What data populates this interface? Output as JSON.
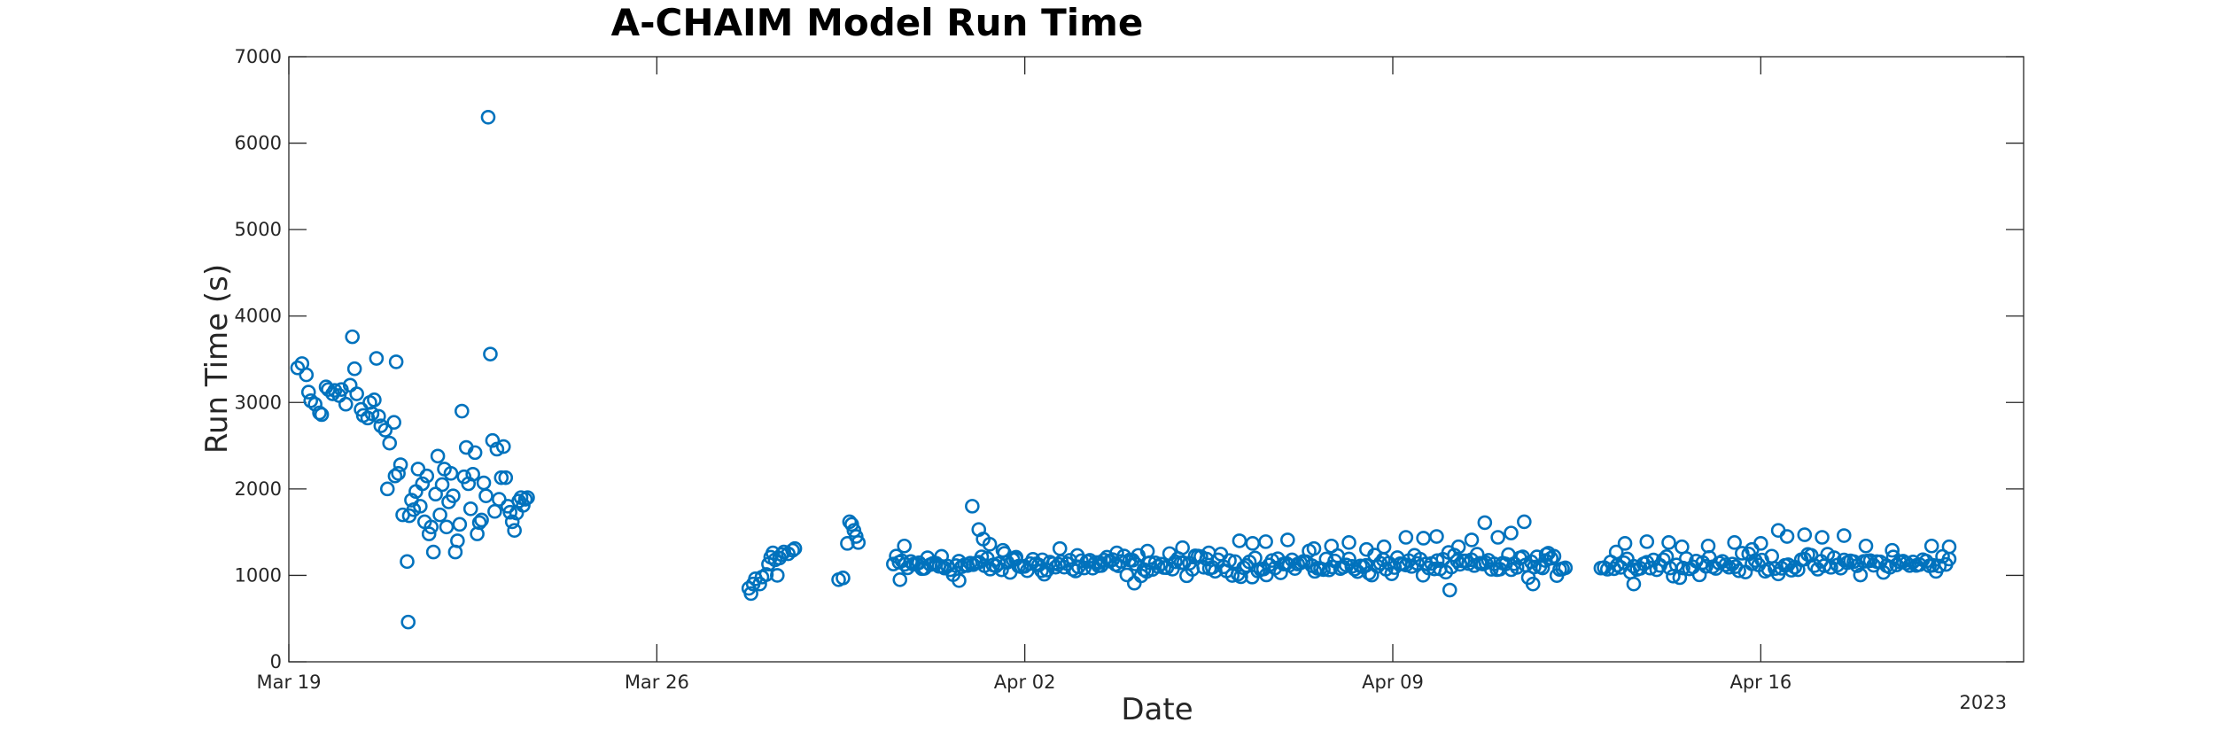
{
  "chart_data": {
    "type": "scatter",
    "title": "A-CHAIM Model Run Time",
    "xlabel": "Date",
    "ylabel": "Run Time (s)",
    "x_ticks": [
      "Mar 19",
      "Mar 26",
      "Apr 02",
      "Apr 09",
      "Apr 16"
    ],
    "x_year_label": "2023",
    "y_ticks": [
      "0",
      "1000",
      "2000",
      "3000",
      "4000",
      "5000",
      "6000",
      "7000"
    ],
    "xlim": [
      "2023-03-19",
      "2023-04-21"
    ],
    "ylim": [
      0,
      7000
    ],
    "grid": false,
    "marker": "open-circle",
    "color": "#0072BD",
    "series": [
      {
        "points": [
          [
            "2023-03-19 04:00",
            3400
          ],
          [
            "2023-03-19 06:00",
            3450
          ],
          [
            "2023-03-19 08:00",
            3320
          ],
          [
            "2023-03-19 09:00",
            3120
          ],
          [
            "2023-03-19 10:00",
            3020
          ],
          [
            "2023-03-19 12:00",
            2980
          ],
          [
            "2023-03-19 14:00",
            2880
          ],
          [
            "2023-03-19 15:00",
            2860
          ],
          [
            "2023-03-19 17:00",
            3180
          ],
          [
            "2023-03-19 18:00",
            3150
          ],
          [
            "2023-03-19 20:00",
            3100
          ],
          [
            "2023-03-19 21:00",
            3140
          ],
          [
            "2023-03-19 23:00",
            3080
          ],
          [
            "2023-03-20 00:00",
            3150
          ],
          [
            "2023-03-20 02:00",
            2980
          ],
          [
            "2023-03-20 04:00",
            3200
          ],
          [
            "2023-03-20 05:00",
            3760
          ],
          [
            "2023-03-20 06:00",
            3390
          ],
          [
            "2023-03-20 07:00",
            3100
          ],
          [
            "2023-03-20 09:00",
            2920
          ],
          [
            "2023-03-20 10:00",
            2850
          ],
          [
            "2023-03-20 12:00",
            2820
          ],
          [
            "2023-03-20 13:00",
            3000
          ],
          [
            "2023-03-20 14:00",
            2870
          ],
          [
            "2023-03-20 15:00",
            3030
          ],
          [
            "2023-03-20 16:00",
            3510
          ],
          [
            "2023-03-20 17:00",
            2840
          ],
          [
            "2023-03-20 18:00",
            2730
          ],
          [
            "2023-03-20 20:00",
            2680
          ],
          [
            "2023-03-20 21:00",
            2000
          ],
          [
            "2023-03-20 22:00",
            2530
          ],
          [
            "2023-03-21 00:00",
            2770
          ],
          [
            "2023-03-21 00:30",
            2150
          ],
          [
            "2023-03-21 01:00",
            3470
          ],
          [
            "2023-03-21 02:00",
            2180
          ],
          [
            "2023-03-21 03:00",
            2280
          ],
          [
            "2023-03-21 04:00",
            1700
          ],
          [
            "2023-03-21 06:00",
            1160
          ],
          [
            "2023-03-21 06:30",
            460
          ],
          [
            "2023-03-21 07:00",
            1690
          ],
          [
            "2023-03-21 08:00",
            1870
          ],
          [
            "2023-03-21 09:00",
            1760
          ],
          [
            "2023-03-21 10:00",
            1970
          ],
          [
            "2023-03-21 11:00",
            2230
          ],
          [
            "2023-03-21 12:00",
            1800
          ],
          [
            "2023-03-21 13:00",
            2060
          ],
          [
            "2023-03-21 14:00",
            1620
          ],
          [
            "2023-03-21 15:00",
            2150
          ],
          [
            "2023-03-21 16:00",
            1480
          ],
          [
            "2023-03-21 17:00",
            1560
          ],
          [
            "2023-03-21 18:00",
            1270
          ],
          [
            "2023-03-21 19:00",
            1940
          ],
          [
            "2023-03-21 20:00",
            2380
          ],
          [
            "2023-03-21 21:00",
            1700
          ],
          [
            "2023-03-21 22:00",
            2050
          ],
          [
            "2023-03-21 23:00",
            2230
          ],
          [
            "2023-03-22 00:00",
            1560
          ],
          [
            "2023-03-22 01:00",
            1850
          ],
          [
            "2023-03-22 02:00",
            2180
          ],
          [
            "2023-03-22 03:00",
            1920
          ],
          [
            "2023-03-22 04:00",
            1270
          ],
          [
            "2023-03-22 05:00",
            1400
          ],
          [
            "2023-03-22 06:00",
            1590
          ],
          [
            "2023-03-22 07:00",
            2900
          ],
          [
            "2023-03-22 08:00",
            2140
          ],
          [
            "2023-03-22 09:00",
            2480
          ],
          [
            "2023-03-22 10:00",
            2060
          ],
          [
            "2023-03-22 11:00",
            1770
          ],
          [
            "2023-03-22 12:00",
            2170
          ],
          [
            "2023-03-22 13:00",
            2420
          ],
          [
            "2023-03-22 14:00",
            1480
          ],
          [
            "2023-03-22 15:00",
            1610
          ],
          [
            "2023-03-22 16:00",
            1640
          ],
          [
            "2023-03-22 17:00",
            2070
          ],
          [
            "2023-03-22 18:00",
            1920
          ],
          [
            "2023-03-22 19:00",
            6300
          ],
          [
            "2023-03-22 20:00",
            3560
          ],
          [
            "2023-03-22 21:00",
            2560
          ],
          [
            "2023-03-22 22:00",
            1740
          ],
          [
            "2023-03-22 23:00",
            2460
          ],
          [
            "2023-03-23 00:00",
            1880
          ],
          [
            "2023-03-23 01:00",
            2130
          ],
          [
            "2023-03-23 02:00",
            2490
          ],
          [
            "2023-03-23 03:00",
            2130
          ],
          [
            "2023-03-23 04:00",
            1800
          ],
          [
            "2023-03-23 05:00",
            1730
          ],
          [
            "2023-03-23 06:00",
            1620
          ],
          [
            "2023-03-23 07:00",
            1520
          ],
          [
            "2023-03-23 08:00",
            1720
          ],
          [
            "2023-03-23 09:00",
            1860
          ],
          [
            "2023-03-23 10:00",
            1900
          ],
          [
            "2023-03-23 11:00",
            1810
          ],
          [
            "2023-03-23 12:00",
            1880
          ],
          [
            "2023-03-23 13:00",
            1900
          ],
          [
            "2023-03-27 18:00",
            850
          ],
          [
            "2023-03-27 19:00",
            790
          ],
          [
            "2023-03-27 20:00",
            900
          ],
          [
            "2023-03-27 21:00",
            960
          ],
          [
            "2023-03-27 23:00",
            900
          ],
          [
            "2023-03-28 00:00",
            980
          ],
          [
            "2023-03-28 02:00",
            1010
          ],
          [
            "2023-03-28 03:00",
            1130
          ],
          [
            "2023-03-28 04:00",
            1210
          ],
          [
            "2023-03-28 05:00",
            1260
          ],
          [
            "2023-03-28 06:00",
            1180
          ],
          [
            "2023-03-28 07:00",
            1000
          ],
          [
            "2023-03-28 08:00",
            1200
          ],
          [
            "2023-03-28 09:00",
            1240
          ],
          [
            "2023-03-28 10:00",
            1270
          ],
          [
            "2023-03-28 12:00",
            1250
          ],
          [
            "2023-03-28 14:00",
            1290
          ],
          [
            "2023-03-28 15:00",
            1310
          ],
          [
            "2023-03-29 11:00",
            950
          ],
          [
            "2023-03-29 13:00",
            970
          ],
          [
            "2023-03-29 15:00",
            1370
          ],
          [
            "2023-03-29 16:00",
            1620
          ],
          [
            "2023-03-29 17:00",
            1590
          ],
          [
            "2023-03-29 18:00",
            1520
          ],
          [
            "2023-03-29 19:00",
            1450
          ],
          [
            "2023-03-29 20:00",
            1380
          ],
          [
            "2023-03-30 15:00",
            950
          ],
          [
            "2023-03-30 17:00",
            1340
          ],
          [
            "2023-03-30 20:00",
            1160
          ],
          [
            "2023-03-31 02:00",
            1080
          ],
          [
            "2023-03-31 10:00",
            1220
          ],
          [
            "2023-03-31 18:00",
            940
          ],
          [
            "2023-04-01 00:00",
            1800
          ],
          [
            "2023-04-01 03:00",
            1530
          ],
          [
            "2023-04-01 05:00",
            1420
          ],
          [
            "2023-04-01 08:00",
            1360
          ],
          [
            "2023-04-01 14:00",
            1290
          ],
          [
            "2023-04-01 20:00",
            1210
          ],
          [
            "2023-04-02 08:00",
            1180
          ],
          [
            "2023-04-02 16:00",
            1310
          ],
          [
            "2023-04-03 00:00",
            1230
          ],
          [
            "2023-04-03 10:00",
            1150
          ],
          [
            "2023-04-03 18:00",
            1260
          ],
          [
            "2023-04-04 02:00",
            910
          ],
          [
            "2023-04-04 08:00",
            1280
          ],
          [
            "2023-04-05 00:00",
            1320
          ],
          [
            "2023-04-05 12:00",
            1260
          ],
          [
            "2023-04-06 02:00",
            1400
          ],
          [
            "2023-04-06 08:00",
            1370
          ],
          [
            "2023-04-06 14:00",
            1390
          ],
          [
            "2023-04-07 00:00",
            1410
          ],
          [
            "2023-04-07 12:00",
            1310
          ],
          [
            "2023-04-07 20:00",
            1340
          ],
          [
            "2023-04-08 04:00",
            1380
          ],
          [
            "2023-04-08 12:00",
            1300
          ],
          [
            "2023-04-08 20:00",
            1330
          ],
          [
            "2023-04-09 06:00",
            1440
          ],
          [
            "2023-04-09 14:00",
            1430
          ],
          [
            "2023-04-09 20:00",
            1450
          ],
          [
            "2023-04-10 02:00",
            830
          ],
          [
            "2023-04-10 06:00",
            1330
          ],
          [
            "2023-04-10 12:00",
            1410
          ],
          [
            "2023-04-10 18:00",
            1610
          ],
          [
            "2023-04-11 00:00",
            1440
          ],
          [
            "2023-04-11 06:00",
            1490
          ],
          [
            "2023-04-11 12:00",
            1620
          ],
          [
            "2023-04-11 16:00",
            900
          ],
          [
            "2023-04-11 22:00",
            1240
          ],
          [
            "2023-04-13 06:00",
            1270
          ],
          [
            "2023-04-13 10:00",
            1370
          ],
          [
            "2023-04-13 14:00",
            900
          ],
          [
            "2023-04-13 20:00",
            1390
          ],
          [
            "2023-04-14 06:00",
            1380
          ],
          [
            "2023-04-14 12:00",
            1330
          ],
          [
            "2023-04-15 00:00",
            1340
          ],
          [
            "2023-04-15 12:00",
            1380
          ],
          [
            "2023-04-15 20:00",
            1300
          ],
          [
            "2023-04-16 00:00",
            1370
          ],
          [
            "2023-04-16 08:00",
            1520
          ],
          [
            "2023-04-16 12:00",
            1450
          ],
          [
            "2023-04-16 20:00",
            1470
          ],
          [
            "2023-04-17 04:00",
            1440
          ],
          [
            "2023-04-17 14:00",
            1460
          ],
          [
            "2023-04-18 00:00",
            1340
          ],
          [
            "2023-04-18 12:00",
            1290
          ],
          [
            "2023-04-19 06:00",
            1340
          ],
          [
            "2023-04-19 14:00",
            1330
          ]
        ]
      }
    ],
    "dense_bands": [
      {
        "start": "2023-03-30 12:00",
        "end": "2023-04-12 07:00",
        "step_hours": 1.3,
        "center": 1120,
        "spread": 110
      },
      {
        "start": "2023-04-12 23:00",
        "end": "2023-04-19 15:00",
        "step_hours": 1.5,
        "center": 1130,
        "spread": 100
      }
    ]
  }
}
